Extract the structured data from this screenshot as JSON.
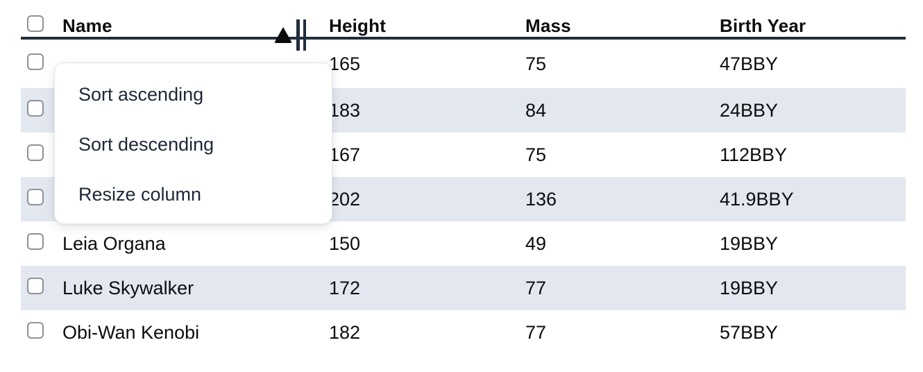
{
  "table": {
    "columns": [
      {
        "key": "name",
        "label": "Name"
      },
      {
        "key": "height",
        "label": "Height"
      },
      {
        "key": "mass",
        "label": "Mass"
      },
      {
        "key": "birth_year",
        "label": "Birth Year"
      }
    ],
    "sort": {
      "column": "Name",
      "direction": "ascending"
    },
    "rows": [
      {
        "name": "",
        "height": "165",
        "mass": "75",
        "birth_year": "47BBY"
      },
      {
        "name": "",
        "height": "183",
        "mass": "84",
        "birth_year": "24BBY"
      },
      {
        "name": "",
        "height": "167",
        "mass": "75",
        "birth_year": "112BBY"
      },
      {
        "name": "",
        "height": "202",
        "mass": "136",
        "birth_year": "41.9BBY"
      },
      {
        "name": "Leia Organa",
        "height": "150",
        "mass": "49",
        "birth_year": "19BBY"
      },
      {
        "name": "Luke Skywalker",
        "height": "172",
        "mass": "77",
        "birth_year": "19BBY"
      },
      {
        "name": "Obi-Wan Kenobi",
        "height": "182",
        "mass": "77",
        "birth_year": "57BBY"
      }
    ]
  },
  "context_menu": {
    "items": [
      "Sort ascending",
      "Sort descending",
      "Resize column"
    ]
  },
  "colors": {
    "accent_dark": "#222d3d",
    "stripe": "#e3e7ef",
    "cell_text": "#0c0d0e",
    "menu_text": "#1e2737",
    "checkbox_border": "#8e9297",
    "menu_border": "#e4e5e9"
  }
}
